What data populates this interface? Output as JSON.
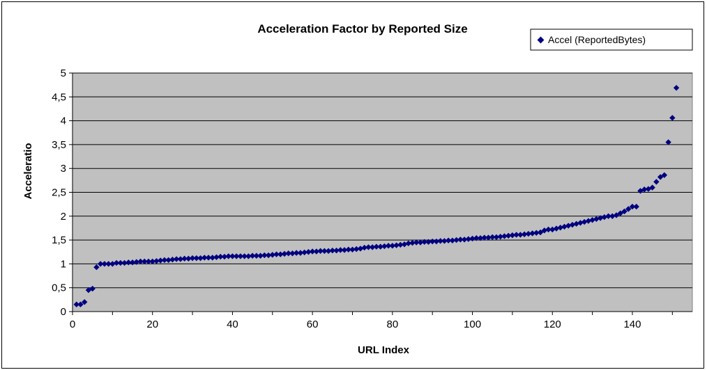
{
  "chart_data": {
    "type": "scatter",
    "title": "Acceleration Factor by Reported Size",
    "xlabel": "URL Index",
    "ylabel": "Acceleratio",
    "xlim": [
      0,
      155
    ],
    "ylim": [
      0,
      5
    ],
    "x_ticks": [
      "0",
      "20",
      "40",
      "60",
      "80",
      "100",
      "120",
      "140"
    ],
    "y_ticks": [
      "0",
      "0,5",
      "1",
      "1,5",
      "2",
      "2,5",
      "3",
      "3,5",
      "4",
      "4,5",
      "5"
    ],
    "grid": "horizontal",
    "legend_position": "top-right",
    "plot_background": "#c0c0c0",
    "marker_color": "#000080",
    "series": [
      {
        "name": "Accel (ReportedBytes)",
        "x": [
          1,
          2,
          3,
          4,
          5,
          6,
          7,
          8,
          9,
          10,
          11,
          12,
          13,
          14,
          15,
          16,
          17,
          18,
          19,
          20,
          21,
          22,
          23,
          24,
          25,
          26,
          27,
          28,
          29,
          30,
          31,
          32,
          33,
          34,
          35,
          36,
          37,
          38,
          39,
          40,
          41,
          42,
          43,
          44,
          45,
          46,
          47,
          48,
          49,
          50,
          51,
          52,
          53,
          54,
          55,
          56,
          57,
          58,
          59,
          60,
          61,
          62,
          63,
          64,
          65,
          66,
          67,
          68,
          69,
          70,
          71,
          72,
          73,
          74,
          75,
          76,
          77,
          78,
          79,
          80,
          81,
          82,
          83,
          84,
          85,
          86,
          87,
          88,
          89,
          90,
          91,
          92,
          93,
          94,
          95,
          96,
          97,
          98,
          99,
          100,
          101,
          102,
          103,
          104,
          105,
          106,
          107,
          108,
          109,
          110,
          111,
          112,
          113,
          114,
          115,
          116,
          117,
          118,
          119,
          120,
          121,
          122,
          123,
          124,
          125,
          126,
          127,
          128,
          129,
          130,
          131,
          132,
          133,
          134,
          135,
          136,
          137,
          138,
          139,
          140,
          141,
          142,
          143,
          144,
          145,
          146,
          147,
          148,
          149,
          150,
          151
        ],
        "y": [
          0.15,
          0.15,
          0.2,
          0.45,
          0.48,
          0.93,
          1.0,
          1.0,
          1.0,
          1.0,
          1.02,
          1.02,
          1.02,
          1.03,
          1.03,
          1.04,
          1.05,
          1.05,
          1.05,
          1.05,
          1.06,
          1.07,
          1.08,
          1.08,
          1.09,
          1.1,
          1.1,
          1.11,
          1.11,
          1.12,
          1.12,
          1.12,
          1.13,
          1.13,
          1.13,
          1.14,
          1.15,
          1.15,
          1.16,
          1.16,
          1.16,
          1.16,
          1.16,
          1.16,
          1.17,
          1.17,
          1.17,
          1.18,
          1.18,
          1.19,
          1.2,
          1.2,
          1.21,
          1.22,
          1.22,
          1.23,
          1.23,
          1.24,
          1.25,
          1.26,
          1.26,
          1.27,
          1.27,
          1.27,
          1.28,
          1.28,
          1.29,
          1.29,
          1.3,
          1.3,
          1.31,
          1.32,
          1.34,
          1.35,
          1.35,
          1.36,
          1.36,
          1.37,
          1.38,
          1.38,
          1.39,
          1.4,
          1.41,
          1.43,
          1.44,
          1.45,
          1.45,
          1.46,
          1.46,
          1.47,
          1.47,
          1.48,
          1.48,
          1.49,
          1.49,
          1.5,
          1.51,
          1.51,
          1.52,
          1.53,
          1.54,
          1.54,
          1.55,
          1.55,
          1.56,
          1.56,
          1.57,
          1.58,
          1.59,
          1.6,
          1.61,
          1.61,
          1.62,
          1.63,
          1.64,
          1.65,
          1.66,
          1.7,
          1.72,
          1.72,
          1.74,
          1.76,
          1.78,
          1.8,
          1.82,
          1.84,
          1.86,
          1.88,
          1.9,
          1.92,
          1.94,
          1.96,
          1.98,
          2.0,
          2.0,
          2.02,
          2.06,
          2.1,
          2.15,
          2.2,
          2.2,
          2.53,
          2.56,
          2.57,
          2.6,
          2.72,
          2.82,
          2.86,
          3.55,
          4.06,
          4.69
        ]
      }
    ]
  }
}
